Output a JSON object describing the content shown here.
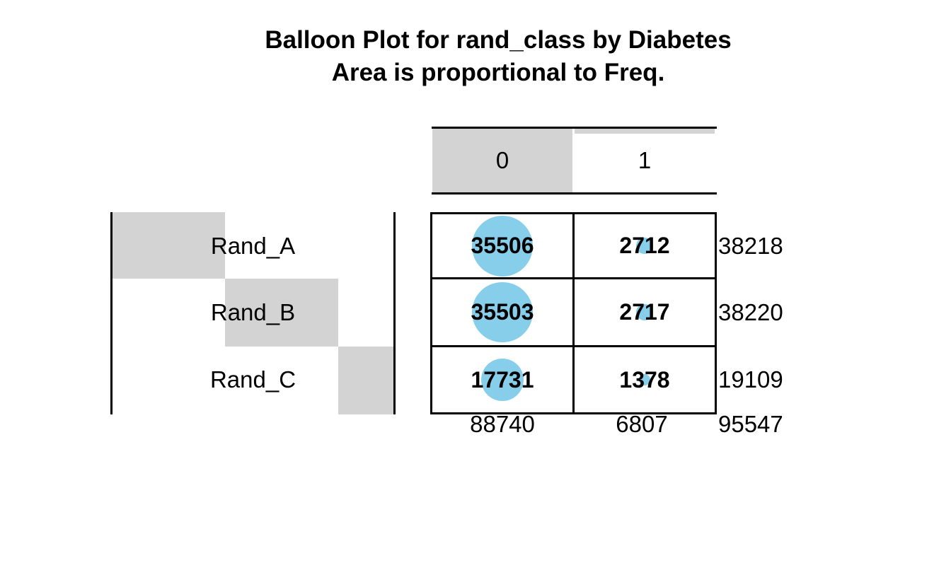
{
  "chart_data": {
    "type": "balloon",
    "title": "Balloon Plot for rand_class by Diabetes",
    "subtitle": "Area is proportional to Freq.",
    "row_variable": "rand_class",
    "col_variable": "Diabetes",
    "row_labels": [
      "Rand_A",
      "Rand_B",
      "Rand_C"
    ],
    "col_labels": [
      "0",
      "1"
    ],
    "values": [
      [
        35506,
        2712
      ],
      [
        35503,
        2717
      ],
      [
        17731,
        1378
      ]
    ],
    "row_totals": [
      38218,
      38220,
      19109
    ],
    "col_totals": [
      88740,
      6807
    ],
    "grand_total": 95547,
    "balloon_color": "#87ceeb",
    "margin_bar_color": "#d3d3d3",
    "legend_note": "Area is proportional to Freq.",
    "grid_color": "#000000"
  }
}
